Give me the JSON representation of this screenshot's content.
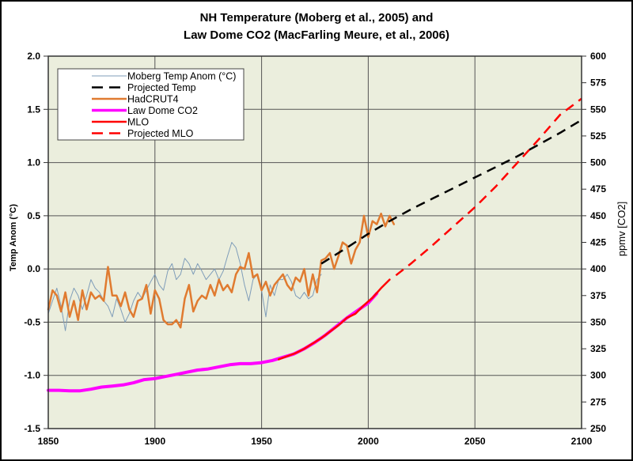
{
  "chart_data": {
    "type": "line",
    "title_lines": [
      "NH Temperature (Moberg et al., 2005) and",
      "Law Dome CO2 (MacFarling Meure, et al., 2006)"
    ],
    "xlabel": "",
    "ylabel": "Temp Anom (°C)",
    "y2label": "ppmv [CO2]",
    "xlim": [
      1850,
      2100
    ],
    "ylim": [
      -1.5,
      2.0
    ],
    "y2lim": [
      250,
      600
    ],
    "xticks": [
      "1850",
      "1900",
      "1950",
      "2000",
      "2050",
      "2100"
    ],
    "yticks": [
      "2.0",
      "1.5",
      "1.0",
      "0.5",
      "0.0",
      "-0.5",
      "-1.0",
      "-1.5"
    ],
    "y2ticks": [
      "600",
      "575",
      "550",
      "525",
      "500",
      "475",
      "450",
      "425",
      "400",
      "375",
      "350",
      "325",
      "300",
      "275",
      "250"
    ],
    "grid": true,
    "plot_background": "#ebeedd",
    "legend_position": "top-left",
    "series": [
      {
        "name": "Moberg Temp Anom (°C)",
        "axis": "left",
        "color": "#7f9db9",
        "style": "solid",
        "x": [
          1850,
          1852,
          1854,
          1856,
          1858,
          1860,
          1862,
          1864,
          1866,
          1868,
          1870,
          1872,
          1874,
          1876,
          1878,
          1880,
          1882,
          1884,
          1886,
          1888,
          1890,
          1892,
          1894,
          1896,
          1898,
          1900,
          1902,
          1904,
          1906,
          1908,
          1910,
          1912,
          1914,
          1916,
          1918,
          1920,
          1922,
          1924,
          1926,
          1928,
          1930,
          1932,
          1934,
          1936,
          1938,
          1940,
          1942,
          1944,
          1946,
          1948,
          1950,
          1952,
          1954,
          1956,
          1958,
          1960,
          1962,
          1964,
          1966,
          1968,
          1970,
          1972,
          1974,
          1976,
          1978
        ],
        "values": [
          -0.42,
          -0.3,
          -0.18,
          -0.35,
          -0.58,
          -0.3,
          -0.18,
          -0.25,
          -0.38,
          -0.25,
          -0.1,
          -0.18,
          -0.22,
          -0.3,
          -0.35,
          -0.45,
          -0.28,
          -0.38,
          -0.5,
          -0.42,
          -0.3,
          -0.22,
          -0.28,
          -0.2,
          -0.12,
          -0.05,
          -0.15,
          -0.2,
          -0.02,
          0.05,
          -0.1,
          -0.05,
          0.1,
          0.05,
          -0.05,
          0.05,
          -0.02,
          -0.1,
          -0.05,
          0.0,
          -0.1,
          -0.02,
          0.12,
          0.25,
          0.2,
          0.05,
          -0.15,
          -0.3,
          -0.1,
          -0.05,
          -0.2,
          -0.45,
          -0.15,
          -0.25,
          -0.1,
          -0.1,
          -0.05,
          -0.12,
          -0.25,
          -0.28,
          -0.22,
          -0.28,
          -0.25,
          -0.1,
          -0.05
        ]
      },
      {
        "name": "Projected Temp",
        "axis": "left",
        "color": "#000000",
        "style": "dashed",
        "x": [
          1978,
          1990,
          2000,
          2010,
          2020,
          2030,
          2040,
          2050,
          2060,
          2070,
          2080,
          2090,
          2100
        ],
        "values": [
          0.05,
          0.2,
          0.33,
          0.45,
          0.56,
          0.66,
          0.76,
          0.86,
          0.96,
          1.06,
          1.17,
          1.28,
          1.4
        ]
      },
      {
        "name": "HadCRUT4",
        "axis": "left",
        "color": "#e07b30",
        "style": "solid",
        "x": [
          1850,
          1852,
          1854,
          1856,
          1858,
          1860,
          1862,
          1864,
          1866,
          1868,
          1870,
          1872,
          1874,
          1876,
          1878,
          1880,
          1882,
          1884,
          1886,
          1888,
          1890,
          1892,
          1894,
          1896,
          1898,
          1900,
          1902,
          1904,
          1906,
          1908,
          1910,
          1912,
          1914,
          1916,
          1918,
          1920,
          1922,
          1924,
          1926,
          1928,
          1930,
          1932,
          1934,
          1936,
          1938,
          1940,
          1942,
          1944,
          1946,
          1948,
          1950,
          1952,
          1954,
          1956,
          1958,
          1960,
          1962,
          1964,
          1966,
          1968,
          1970,
          1972,
          1974,
          1976,
          1978,
          1980,
          1982,
          1984,
          1986,
          1988,
          1990,
          1992,
          1994,
          1996,
          1998,
          2000,
          2002,
          2004,
          2006,
          2008,
          2010,
          2012
        ],
        "values": [
          -0.38,
          -0.2,
          -0.25,
          -0.4,
          -0.22,
          -0.45,
          -0.3,
          -0.48,
          -0.2,
          -0.38,
          -0.22,
          -0.28,
          -0.25,
          -0.3,
          0.02,
          -0.25,
          -0.25,
          -0.35,
          -0.22,
          -0.38,
          -0.45,
          -0.3,
          -0.28,
          -0.15,
          -0.42,
          -0.2,
          -0.28,
          -0.48,
          -0.52,
          -0.52,
          -0.48,
          -0.55,
          -0.28,
          -0.15,
          -0.4,
          -0.3,
          -0.25,
          -0.28,
          -0.15,
          -0.25,
          -0.1,
          -0.2,
          -0.15,
          -0.22,
          -0.05,
          0.02,
          0.0,
          0.15,
          -0.08,
          -0.05,
          -0.2,
          -0.12,
          -0.25,
          -0.15,
          -0.1,
          -0.05,
          -0.15,
          -0.2,
          -0.08,
          -0.12,
          0.0,
          -0.25,
          -0.05,
          -0.22,
          0.08,
          0.1,
          0.15,
          0.0,
          0.12,
          0.25,
          0.22,
          0.05,
          0.18,
          0.25,
          0.5,
          0.3,
          0.45,
          0.42,
          0.52,
          0.4,
          0.5,
          0.42
        ]
      },
      {
        "name": "Law Dome CO2",
        "axis": "right",
        "color": "#ff00ff",
        "style": "solid",
        "x": [
          1850,
          1855,
          1860,
          1865,
          1870,
          1875,
          1880,
          1885,
          1890,
          1895,
          1900,
          1905,
          1910,
          1915,
          1920,
          1925,
          1930,
          1935,
          1940,
          1945,
          1950,
          1955,
          1960,
          1965,
          1970,
          1975,
          1980,
          1985,
          1990,
          1995,
          2000,
          2004
        ],
        "values": [
          286,
          286,
          285.5,
          285.5,
          287,
          289,
          290,
          291,
          293,
          296,
          297,
          299,
          301,
          303,
          305,
          306,
          308,
          310,
          311,
          311,
          312,
          314,
          317,
          320,
          325,
          331,
          338,
          346,
          354,
          361,
          368,
          377
        ]
      },
      {
        "name": "MLO",
        "axis": "right",
        "color": "#ff0000",
        "style": "solid",
        "x": [
          1958,
          1962,
          1966,
          1970,
          1974,
          1978,
          1982,
          1986,
          1990,
          1994,
          1998,
          2002,
          2006,
          2010
        ],
        "values": [
          315,
          318,
          321,
          325,
          330,
          335,
          341,
          347,
          354,
          358,
          366,
          373,
          382,
          390
        ]
      },
      {
        "name": "Projected MLO",
        "axis": "right",
        "color": "#ff0000",
        "style": "dashed",
        "x": [
          2013,
          2020,
          2030,
          2040,
          2050,
          2060,
          2070,
          2080,
          2090,
          2100
        ],
        "values": [
          394,
          405,
          422,
          440,
          458,
          478,
          500,
          522,
          545,
          560
        ]
      }
    ]
  }
}
